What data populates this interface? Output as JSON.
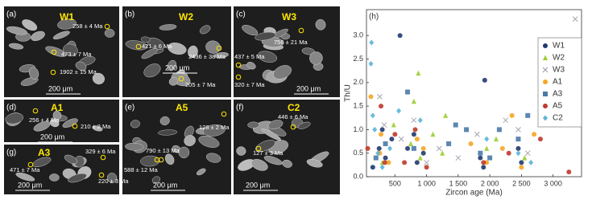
{
  "panels": [
    {
      "label": "(a)",
      "title": "W1",
      "ages": [
        "258 ± 4 Ma",
        "473 ± 7 Ma",
        "1902 ± 15 Ma"
      ],
      "scale": "200 μm"
    },
    {
      "label": "(b)",
      "title": "W2",
      "ages": [
        "421 ± 6 Ma",
        "2436 ± 38 Ma",
        "205 ± 7 Ma"
      ],
      "scale": "200 μm"
    },
    {
      "label": "(c)",
      "title": "W3",
      "ages": [
        "756 ± 21 Ma",
        "437 ± 5 Ma",
        "320 ± 7 Ma"
      ],
      "scale": "200 μm"
    },
    {
      "label": "(d)",
      "title": "A1",
      "ages": [
        "256 ± 4 Ma",
        "210 ± 2 Ma"
      ],
      "scale": "200 μm"
    },
    {
      "label": "(e)",
      "title": "A5",
      "ages": [
        "128 ± 2 Ma",
        "790 ± 13 Ma",
        "588 ± 12 Ma"
      ],
      "scale": "200 μm"
    },
    {
      "label": "(f)",
      "title": "C2",
      "ages": [
        "446 ± 6 Ma",
        "127 ± 3 Ma"
      ],
      "scale": "200 μm"
    },
    {
      "label": "(g)",
      "title": "A3",
      "ages": [
        "329 ± 6 Ma",
        "471 ± 7 Ma",
        "220 ± 3 Ma"
      ],
      "scale": "200 μm"
    }
  ],
  "chart_data": {
    "type": "scatter",
    "panel_label": "(h)",
    "x_label": "Zircon age (Ma)",
    "y_label": "Th/U",
    "xlim": [
      50,
      3450
    ],
    "ylim": [
      0,
      3.55
    ],
    "xticks": [
      500,
      {
        "value": 1000,
        "label": "1 000"
      },
      {
        "value": 1500,
        "label": "1 500"
      },
      {
        "value": 2000,
        "label": "2 000"
      },
      {
        "value": 2500,
        "label": "2 500"
      },
      {
        "value": 3000,
        "label": "3 000"
      }
    ],
    "yticks": [
      {
        "value": 0,
        "label": "0.0"
      },
      0.5,
      {
        "value": 1,
        "label": "1.0"
      },
      1.5,
      {
        "value": 2,
        "label": "2.0"
      },
      2.5,
      {
        "value": 3,
        "label": "3.0"
      }
    ],
    "legend": "upper right",
    "series": [
      {
        "name": "W1",
        "color": "#1f3a6e",
        "marker": "circle",
        "x": [
          580,
          1920,
          250,
          300,
          350,
          450,
          800,
          850,
          950,
          1850,
          1900,
          2450,
          2500,
          150,
          700
        ],
        "y": [
          3.0,
          2.05,
          0.6,
          1.0,
          0.4,
          0.8,
          0.9,
          0.3,
          0.5,
          0.4,
          0.2,
          0.6,
          0.3,
          0.2,
          0.6
        ]
      },
      {
        "name": "W2",
        "color": "#9acd32",
        "marker": "triangle",
        "x": [
          870,
          800,
          750,
          900,
          1100,
          1250,
          1950,
          2100,
          2550,
          300,
          480,
          1300
        ],
        "y": [
          2.2,
          1.6,
          0.7,
          0.4,
          0.9,
          0.5,
          0.6,
          0.8,
          0.4,
          0.3,
          1.1,
          1.3
        ]
      },
      {
        "name": "W3",
        "color": "#9a9aaa",
        "marker": "x",
        "x": [
          3350,
          260,
          330,
          600,
          800,
          1000,
          1500,
          1800,
          2250,
          2450,
          2600,
          1200
        ],
        "y": [
          3.35,
          1.7,
          1.1,
          0.8,
          1.2,
          0.3,
          0.4,
          0.9,
          1.2,
          1.0,
          0.5,
          0.6
        ]
      },
      {
        "name": "A1",
        "color": "#f5a623",
        "marker": "circle",
        "x": [
          2350,
          260,
          280,
          400,
          850,
          950,
          1700,
          1950,
          2200,
          2500,
          2700,
          120
        ],
        "y": [
          1.3,
          0.5,
          0.9,
          0.3,
          0.8,
          0.6,
          0.7,
          0.3,
          0.6,
          0.2,
          0.9,
          1.7
        ]
      },
      {
        "name": "A3",
        "color": "#4a7aa8",
        "marker": "square",
        "x": [
          1460,
          1630,
          700,
          800,
          1350,
          1850,
          2000,
          2150,
          2450,
          2600,
          350,
          200
        ],
        "y": [
          1.1,
          1.0,
          1.8,
          0.6,
          0.7,
          0.5,
          0.4,
          1.0,
          0.8,
          1.3,
          0.7,
          0.4
        ]
      },
      {
        "name": "A5",
        "color": "#c0392b",
        "marker": "circle",
        "x": [
          70,
          280,
          340,
          500,
          820,
          1000,
          1900,
          2300,
          2800,
          3250,
          650
        ],
        "y": [
          0.6,
          1.5,
          0.3,
          0.9,
          1.0,
          0.2,
          0.3,
          0.5,
          0.8,
          0.1,
          0.3
        ]
      },
      {
        "name": "C2",
        "color": "#5ab4d6",
        "marker": "diamond",
        "x": [
          130,
          120,
          150,
          180,
          230,
          300,
          420,
          900,
          1950,
          2450,
          2650,
          560
        ],
        "y": [
          2.85,
          2.4,
          1.3,
          1.0,
          0.5,
          0.2,
          0.6,
          1.2,
          0.8,
          0.5,
          0.3,
          1.4
        ]
      }
    ]
  }
}
